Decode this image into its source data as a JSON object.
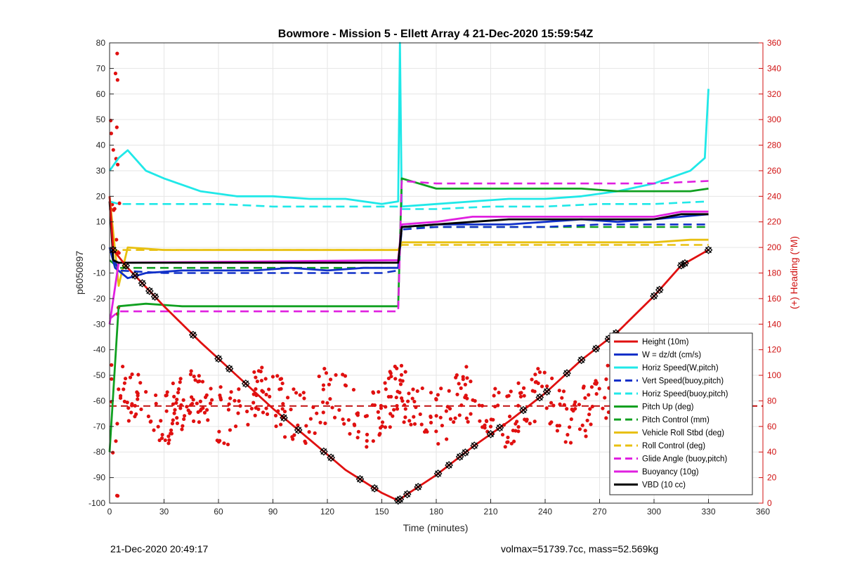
{
  "chart_data": {
    "type": "line",
    "title": "Bowmore - Mission 5 - Ellett Array 4 21-Dec-2020 15:59:54Z",
    "xlabel": "Time (minutes)",
    "ylabel_left": "p6050897",
    "ylabel_right": "(+) Heading (°M)",
    "xlim": [
      0,
      360
    ],
    "ylim_left": [
      -100,
      80
    ],
    "ylim_right": [
      0,
      360
    ],
    "x_ticks": [
      0,
      30,
      60,
      90,
      120,
      150,
      180,
      210,
      240,
      270,
      300,
      330,
      360
    ],
    "y_ticks_left": [
      -100,
      -90,
      -80,
      -70,
      -60,
      -50,
      -40,
      -30,
      -20,
      -10,
      0,
      10,
      20,
      30,
      40,
      50,
      60,
      70,
      80
    ],
    "y_ticks_right": [
      0,
      20,
      40,
      60,
      80,
      100,
      120,
      140,
      160,
      180,
      200,
      220,
      240,
      260,
      280,
      300,
      320,
      340,
      360
    ],
    "grid": true,
    "legend_position": "bottom-right",
    "series": [
      {
        "name": "Height (10m)",
        "color": "#e01010",
        "style": "solid",
        "axis": "left",
        "x": [
          0,
          2,
          10,
          30,
          50,
          70,
          90,
          110,
          130,
          150,
          159,
          165,
          180,
          200,
          220,
          240,
          260,
          280,
          300,
          315,
          330
        ],
        "y": [
          20,
          -1,
          -8,
          -23,
          -37,
          -50,
          -63,
          -75,
          -87,
          -96,
          -99,
          -96,
          -89,
          -78,
          -68,
          -57,
          -44,
          -33,
          -19,
          -7,
          -1
        ]
      },
      {
        "name": "W = dz/dt (cm/s)",
        "color": "#1030c8",
        "style": "solid",
        "axis": "left",
        "x": [
          0,
          3,
          10,
          20,
          40,
          60,
          80,
          100,
          120,
          140,
          159,
          161,
          180,
          200,
          220,
          240,
          260,
          280,
          300,
          315,
          330
        ],
        "y": [
          0,
          -8,
          -12,
          -10,
          -9,
          -9,
          -9,
          -8,
          -9,
          -8,
          -8,
          8,
          9,
          9,
          9,
          10,
          11,
          10,
          11,
          12,
          13
        ]
      },
      {
        "name": "Horiz Speed(W,pitch)",
        "color": "#20e8e8",
        "style": "solid",
        "axis": "left",
        "x": [
          0,
          5,
          10,
          20,
          30,
          50,
          70,
          90,
          110,
          130,
          150,
          159,
          160,
          161,
          180,
          200,
          220,
          240,
          260,
          280,
          300,
          320,
          328,
          330
        ],
        "y": [
          30,
          35,
          38,
          30,
          27,
          22,
          20,
          20,
          19,
          19,
          17,
          18,
          80,
          16,
          17,
          18,
          19,
          19,
          20,
          22,
          25,
          30,
          35,
          62
        ]
      },
      {
        "name": "Vert Speed(buoy,pitch)",
        "color": "#1030c8",
        "style": "dashed",
        "axis": "left",
        "x": [
          0,
          5,
          30,
          60,
          90,
          120,
          150,
          159,
          161,
          180,
          210,
          240,
          270,
          300,
          330
        ],
        "y": [
          0,
          -9,
          -10,
          -10,
          -10,
          -10,
          -10,
          -9,
          7,
          8,
          8,
          8,
          9,
          9,
          9
        ]
      },
      {
        "name": "Horiz Speed(buoy,pitch)",
        "color": "#20e8e8",
        "style": "dashed",
        "axis": "left",
        "x": [
          0,
          5,
          30,
          60,
          90,
          120,
          150,
          159,
          161,
          180,
          210,
          240,
          270,
          300,
          330
        ],
        "y": [
          18,
          17,
          17,
          17,
          16,
          16,
          16,
          16,
          15,
          15,
          16,
          16,
          17,
          17,
          18
        ]
      },
      {
        "name": "Pitch Up (deg)",
        "color": "#10a020",
        "style": "solid",
        "axis": "left",
        "x": [
          0,
          5,
          20,
          40,
          60,
          80,
          100,
          120,
          140,
          159,
          161,
          180,
          200,
          220,
          240,
          260,
          280,
          300,
          320,
          330
        ],
        "y": [
          -80,
          -23,
          -22,
          -23,
          -23,
          -23,
          -23,
          -23,
          -23,
          -23,
          27,
          23,
          23,
          23,
          23,
          23,
          22,
          22,
          22,
          23
        ]
      },
      {
        "name": "Pitch Control (mm)",
        "color": "#10a020",
        "style": "dashed",
        "axis": "left",
        "x": [
          0,
          5,
          60,
          120,
          159,
          161,
          200,
          250,
          300,
          330
        ],
        "y": [
          -5,
          -8,
          -8,
          -8,
          -8,
          8,
          8,
          8,
          8,
          8
        ]
      },
      {
        "name": "Vehicle Roll Stbd (deg)",
        "color": "#e8c010",
        "style": "solid",
        "axis": "left",
        "x": [
          0,
          5,
          10,
          30,
          60,
          90,
          120,
          150,
          159,
          161,
          180,
          200,
          220,
          240,
          260,
          280,
          300,
          320,
          330
        ],
        "y": [
          20,
          -15,
          0,
          -1,
          -1,
          -1,
          -1,
          -1,
          -1,
          2,
          2,
          2,
          2,
          2,
          2,
          2,
          2,
          3,
          3
        ]
      },
      {
        "name": "Roll Control (deg)",
        "color": "#e8c010",
        "style": "dashed",
        "axis": "left",
        "x": [
          0,
          5,
          60,
          120,
          159,
          161,
          210,
          270,
          330
        ],
        "y": [
          -2,
          -1,
          -1,
          -1,
          -1,
          1,
          1,
          1,
          1
        ]
      },
      {
        "name": "Glide Angle (buoy,pitch)",
        "color": "#e020e0",
        "style": "dashed",
        "axis": "left",
        "x": [
          0,
          5,
          30,
          60,
          90,
          120,
          150,
          159,
          161,
          180,
          210,
          240,
          270,
          300,
          330
        ],
        "y": [
          -28,
          -25,
          -25,
          -25,
          -25,
          -25,
          -25,
          -25,
          26,
          25,
          25,
          25,
          25,
          25,
          26
        ]
      },
      {
        "name": "Buoyancy (10g)",
        "color": "#e020e0",
        "style": "solid",
        "axis": "left",
        "x": [
          0,
          5,
          159,
          161,
          180,
          200,
          300,
          315,
          330
        ],
        "y": [
          -30,
          -6,
          -5,
          9,
          10,
          12,
          12,
          14,
          14
        ]
      },
      {
        "name": "VBD (10 cc)",
        "color": "#000000",
        "style": "solid",
        "axis": "left",
        "x": [
          0,
          2,
          5,
          159,
          161,
          180,
          200,
          220,
          300,
          315,
          330
        ],
        "y": [
          18,
          -5,
          -6,
          -6,
          8,
          9,
          10,
          11,
          11,
          13,
          13
        ]
      }
    ],
    "heading_dashed_line": {
      "color": "#c01010",
      "y_right": 76
    }
  },
  "footer": {
    "left": "21-Dec-2020 20:49:17",
    "right": "volmax=51739.7cc, mass=52.569kg"
  }
}
